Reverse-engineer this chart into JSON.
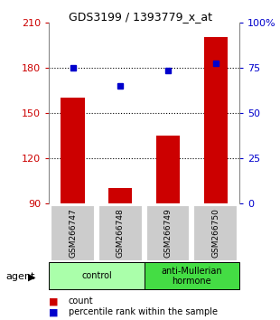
{
  "title": "GDS3199 / 1393779_x_at",
  "samples": [
    "GSM266747",
    "GSM266748",
    "GSM266749",
    "GSM266750"
  ],
  "bar_values": [
    160,
    100,
    135,
    200
  ],
  "bar_bottom": 90,
  "dot_values": [
    180,
    168,
    178,
    183
  ],
  "bar_color": "#cc0000",
  "dot_color": "#0000cc",
  "ylim_left": [
    90,
    210
  ],
  "ylim_right": [
    0,
    100
  ],
  "yticks_left": [
    90,
    120,
    150,
    180,
    210
  ],
  "yticks_right": [
    0,
    25,
    50,
    75,
    100
  ],
  "ytick_labels_right": [
    "0",
    "25",
    "50",
    "75",
    "100%"
  ],
  "hlines": [
    120,
    150,
    180
  ],
  "groups": [
    {
      "label": "control",
      "indices": [
        0,
        1
      ],
      "color": "#aaffaa"
    },
    {
      "label": "anti-Mullerian\nhormone",
      "indices": [
        2,
        3
      ],
      "color": "#44dd44"
    }
  ],
  "agent_label": "agent",
  "legend_count_label": "count",
  "legend_pct_label": "percentile rank within the sample",
  "bg_color": "#ffffff",
  "plot_bg_color": "#ffffff",
  "tick_label_color_left": "#cc0000",
  "tick_label_color_right": "#0000cc",
  "sample_box_color": "#cccccc"
}
